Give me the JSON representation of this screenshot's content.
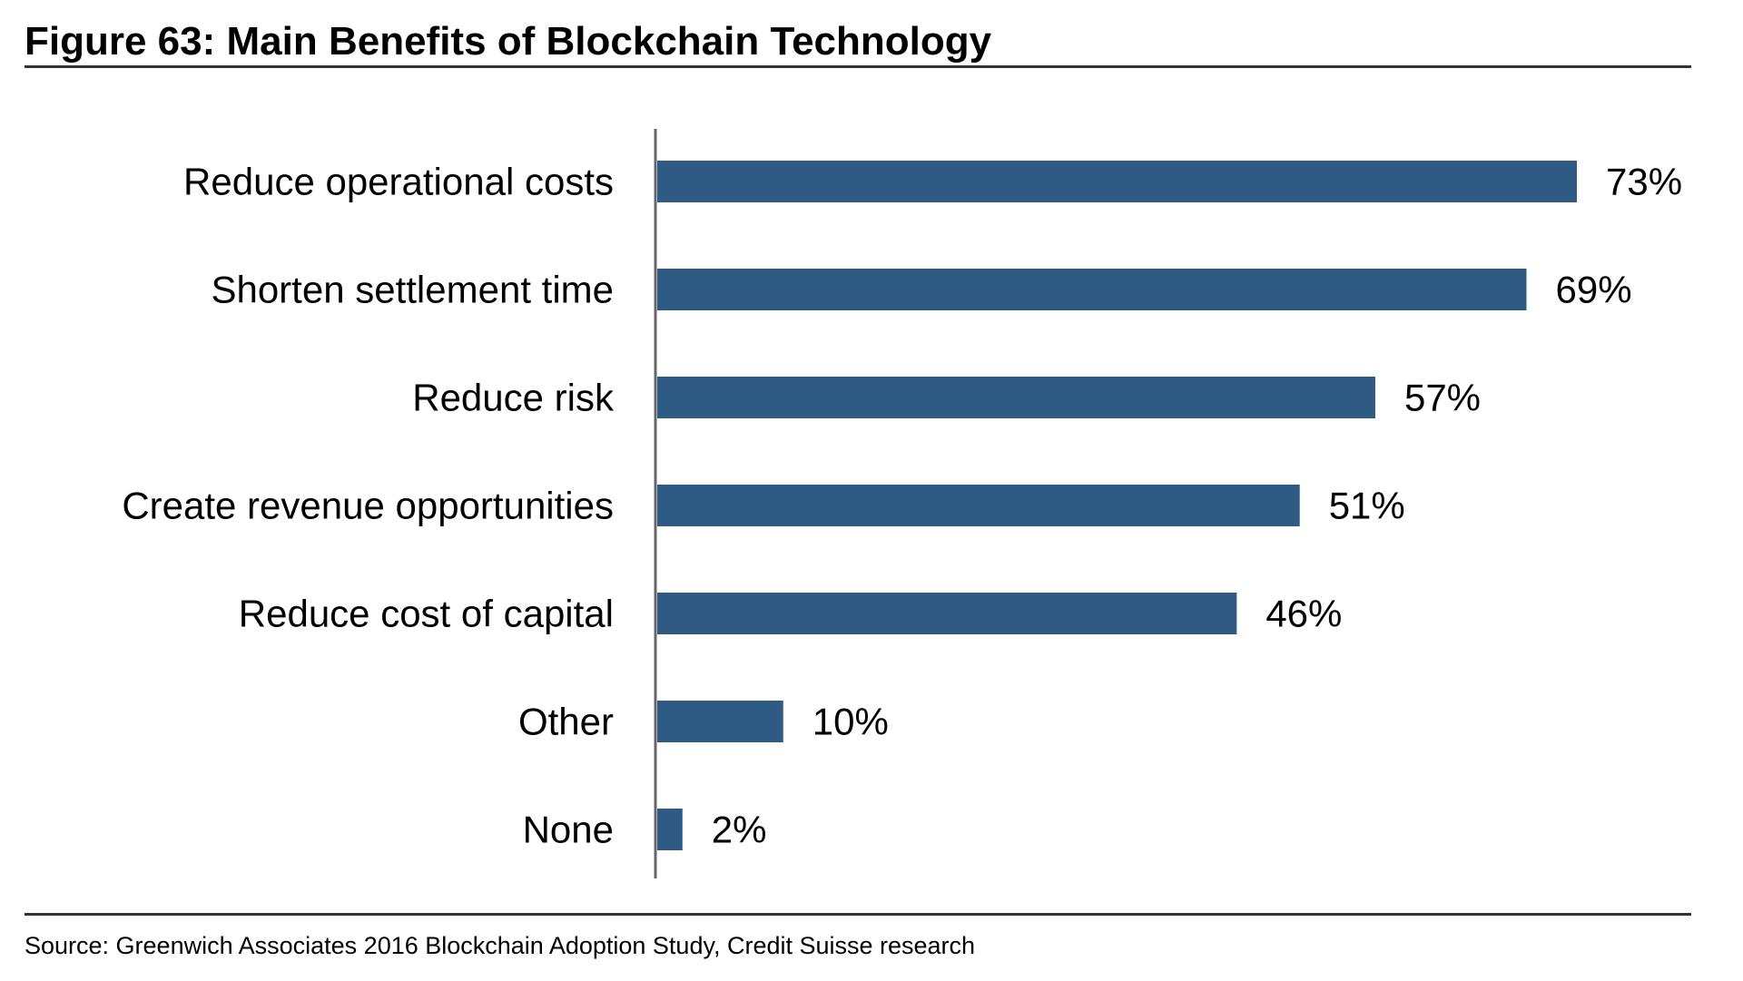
{
  "figure": {
    "title": "Figure 63: Main Benefits of Blockchain Technology",
    "source": "Source: Greenwich Associates 2016 Blockchain Adoption Study, Credit Suisse research"
  },
  "colors": {
    "bar": "#2f5a83",
    "axis": "#666666",
    "text": "#000000"
  },
  "chart_data": {
    "type": "bar",
    "orientation": "horizontal",
    "categories": [
      "Reduce operational costs",
      "Shorten settlement time",
      "Reduce risk",
      "Create revenue opportunities",
      "Reduce cost of capital",
      "Other",
      "None"
    ],
    "values": [
      73,
      69,
      57,
      51,
      46,
      10,
      2
    ],
    "value_labels": [
      "73%",
      "69%",
      "57%",
      "51%",
      "46%",
      "10%",
      "2%"
    ],
    "unit": "%",
    "xlim": [
      0,
      73
    ],
    "grid": false,
    "legend": "none"
  }
}
